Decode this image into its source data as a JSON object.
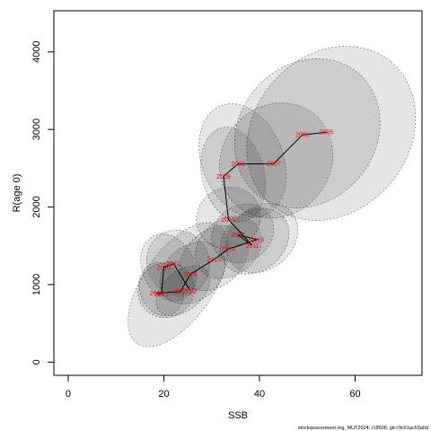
{
  "chart_data": {
    "type": "scatter",
    "title": "",
    "xlabel": "SSB",
    "ylabel": "R(age 0)",
    "xlim": [
      -3,
      74
    ],
    "ylim": [
      -170,
      4530
    ],
    "x_ticks": [
      "0",
      "20",
      "40",
      "60"
    ],
    "x_tick_values": [
      0,
      20,
      40,
      60
    ],
    "y_ticks": [
      "0",
      "1000",
      "2000",
      "3000",
      "4000"
    ],
    "y_tick_values": [
      0,
      1000,
      2000,
      3000,
      4000
    ],
    "grid": false,
    "points": [
      {
        "label": "2005",
        "x": 54.0,
        "y": 2965
      },
      {
        "label": "2006",
        "x": 49.0,
        "y": 2930
      },
      {
        "label": "2007",
        "x": 43.0,
        "y": 2560
      },
      {
        "label": "2008",
        "x": 35.5,
        "y": 2555
      },
      {
        "label": "2009",
        "x": 32.5,
        "y": 2395
      },
      {
        "label": "2010",
        "x": 33.5,
        "y": 1840
      },
      {
        "label": "2011",
        "x": 38.5,
        "y": 1505
      },
      {
        "label": "2012",
        "x": 35.5,
        "y": 1640
      },
      {
        "label": "2013",
        "x": 39.5,
        "y": 1580
      },
      {
        "label": "2014",
        "x": 33.5,
        "y": 1460
      },
      {
        "label": "2015",
        "x": 30.5,
        "y": 1325
      },
      {
        "label": "2016",
        "x": 25.5,
        "y": 1130
      },
      {
        "label": "2017",
        "x": 23.5,
        "y": 910
      },
      {
        "label": "2018",
        "x": 18.5,
        "y": 890
      },
      {
        "label": "2019",
        "x": 19.5,
        "y": 880
      },
      {
        "label": "2020",
        "x": 20.0,
        "y": 1220
      },
      {
        "label": "2021",
        "x": 22.0,
        "y": 1270
      },
      {
        "label": "2022",
        "x": 25.5,
        "y": 920
      }
    ],
    "ellipses": [
      {
        "x": 55.0,
        "y": 2950,
        "rx": 19.5,
        "ry": 1000,
        "rot": -50
      },
      {
        "x": 50.0,
        "y": 2950,
        "rx": 16.5,
        "ry": 880,
        "rot": -50
      },
      {
        "x": 43.5,
        "y": 2600,
        "rx": 12.5,
        "ry": 700,
        "rot": -50
      },
      {
        "x": 36.5,
        "y": 2600,
        "rx": 8.5,
        "ry": 760,
        "rot": -22
      },
      {
        "x": 34.5,
        "y": 2420,
        "rx": 6.5,
        "ry": 620,
        "rot": -14
      },
      {
        "x": 33.5,
        "y": 1860,
        "rx": 6.8,
        "ry": 390,
        "rot": -28
      },
      {
        "x": 39.0,
        "y": 1560,
        "rx": 7.8,
        "ry": 380,
        "rot": -40
      },
      {
        "x": 36.5,
        "y": 1660,
        "rx": 6.8,
        "ry": 360,
        "rot": -35
      },
      {
        "x": 40.5,
        "y": 1600,
        "rx": 8.2,
        "ry": 400,
        "rot": -40
      },
      {
        "x": 33.5,
        "y": 1480,
        "rx": 7.5,
        "ry": 360,
        "rot": -38
      },
      {
        "x": 30.5,
        "y": 1340,
        "rx": 8.0,
        "ry": 360,
        "rot": -40
      },
      {
        "x": 26.0,
        "y": 1150,
        "rx": 7.5,
        "ry": 350,
        "rot": -40
      },
      {
        "x": 24.0,
        "y": 920,
        "rx": 6.5,
        "ry": 250,
        "rot": -40
      },
      {
        "x": 19.5,
        "y": 940,
        "rx": 4.5,
        "ry": 350,
        "rot": -20
      },
      {
        "x": 20.5,
        "y": 930,
        "rx": 6.0,
        "ry": 350,
        "rot": -32
      },
      {
        "x": 21.0,
        "y": 1220,
        "rx": 5.5,
        "ry": 450,
        "rot": -25
      },
      {
        "x": 23.0,
        "y": 1280,
        "rx": 6.5,
        "ry": 430,
        "rot": -28
      },
      {
        "x": 23.0,
        "y": 1000,
        "rx": 15.0,
        "ry": 450,
        "rot": -55
      }
    ]
  },
  "credit": "stockassessment.org, MUT2024, r18506, git:c9c61ac53a0d"
}
